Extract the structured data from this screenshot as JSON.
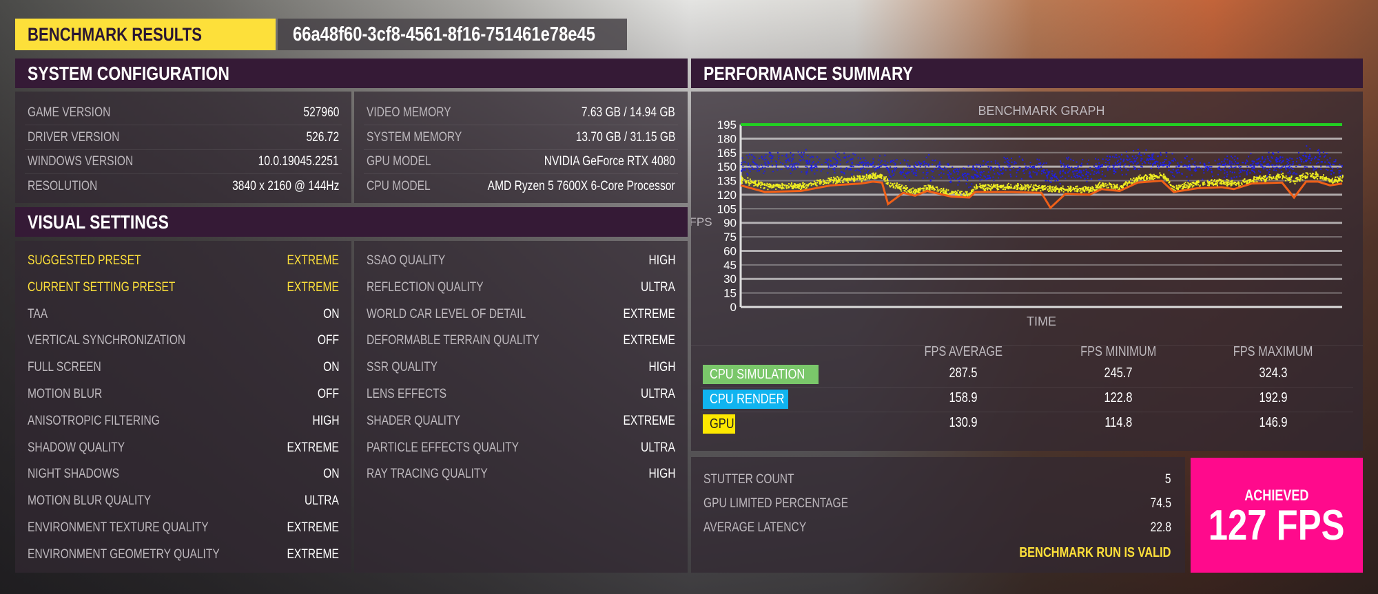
{
  "header": {
    "title": "BENCHMARK RESULTS",
    "run_id": "66a48f60-3cf8-4561-8f16-751461e78e45"
  },
  "system_configuration": {
    "title": "SYSTEM CONFIGURATION",
    "left": [
      {
        "label": "GAME VERSION",
        "value": "527960"
      },
      {
        "label": "DRIVER VERSION",
        "value": "526.72"
      },
      {
        "label": "WINDOWS VERSION",
        "value": "10.0.19045.2251"
      },
      {
        "label": "RESOLUTION",
        "value": "3840 x 2160 @ 144Hz"
      }
    ],
    "right": [
      {
        "label": "VIDEO MEMORY",
        "value": "7.63 GB / 14.94 GB"
      },
      {
        "label": "SYSTEM MEMORY",
        "value": "13.70 GB / 31.15 GB"
      },
      {
        "label": "GPU MODEL",
        "value": "NVIDIA GeForce RTX 4080"
      },
      {
        "label": "CPU MODEL",
        "value": "AMD Ryzen 5 7600X 6-Core Processor"
      }
    ]
  },
  "visual_settings": {
    "title": "VISUAL SETTINGS",
    "left": [
      {
        "label": "SUGGESTED PRESET",
        "value": "EXTREME",
        "highlight": true
      },
      {
        "label": "CURRENT SETTING PRESET",
        "value": "EXTREME",
        "highlight": true
      },
      {
        "label": "TAA",
        "value": "ON"
      },
      {
        "label": "VERTICAL SYNCHRONIZATION",
        "value": "OFF"
      },
      {
        "label": "FULL SCREEN",
        "value": "ON"
      },
      {
        "label": "MOTION BLUR",
        "value": "OFF"
      },
      {
        "label": "ANISOTROPIC FILTERING",
        "value": "HIGH"
      },
      {
        "label": "SHADOW QUALITY",
        "value": "EXTREME"
      },
      {
        "label": "NIGHT SHADOWS",
        "value": "ON"
      },
      {
        "label": "MOTION BLUR QUALITY",
        "value": "ULTRA"
      },
      {
        "label": "ENVIRONMENT TEXTURE QUALITY",
        "value": "EXTREME"
      },
      {
        "label": "ENVIRONMENT GEOMETRY QUALITY",
        "value": "EXTREME"
      }
    ],
    "right": [
      {
        "label": "SSAO QUALITY",
        "value": "HIGH"
      },
      {
        "label": "REFLECTION QUALITY",
        "value": "ULTRA"
      },
      {
        "label": "WORLD CAR LEVEL OF DETAIL",
        "value": "EXTREME"
      },
      {
        "label": "DEFORMABLE TERRAIN QUALITY",
        "value": "EXTREME"
      },
      {
        "label": "SSR QUALITY",
        "value": "HIGH"
      },
      {
        "label": "LENS EFFECTS",
        "value": "ULTRA"
      },
      {
        "label": "SHADER QUALITY",
        "value": "EXTREME"
      },
      {
        "label": "PARTICLE EFFECTS QUALITY",
        "value": "ULTRA"
      },
      {
        "label": "RAY TRACING QUALITY",
        "value": "HIGH"
      }
    ]
  },
  "performance_summary": {
    "title": "PERFORMANCE SUMMARY",
    "columns": [
      "FPS AVERAGE",
      "FPS MINIMUM",
      "FPS MAXIMUM"
    ],
    "rows": [
      {
        "label": "CPU SIMULATION",
        "color": "#7ac76a",
        "text_color": "#ffffff",
        "values": [
          "287.5",
          "245.7",
          "324.3"
        ]
      },
      {
        "label": "CPU RENDER",
        "color": "#10b4f0",
        "text_color": "#ffffff",
        "values": [
          "158.9",
          "122.8",
          "192.9"
        ]
      },
      {
        "label": "GPU",
        "color": "#fde800",
        "text_color": "#222222",
        "values": [
          "130.9",
          "114.8",
          "146.9"
        ]
      }
    ],
    "stats": [
      {
        "label": "STUTTER COUNT",
        "value": "5"
      },
      {
        "label": "GPU LIMITED PERCENTAGE",
        "value": "74.5"
      },
      {
        "label": "AVERAGE LATENCY",
        "value": "22.8"
      }
    ],
    "validity": "BENCHMARK RUN IS VALID",
    "achieved_label": "ACHIEVED",
    "achieved_value": "127 FPS",
    "achieved_color": "#ff0a8c"
  },
  "chart_data": {
    "type": "line",
    "title": "BENCHMARK GRAPH",
    "xlabel": "TIME",
    "ylabel": "FPS",
    "ylim": [
      0,
      195
    ],
    "yticks": [
      0,
      15,
      30,
      45,
      60,
      75,
      90,
      105,
      120,
      135,
      150,
      165,
      180,
      195
    ],
    "grid": true,
    "x": [
      0,
      4,
      10,
      15,
      20,
      22,
      23.5,
      24.5,
      27,
      29,
      31,
      35,
      38,
      39,
      45,
      50,
      51.5,
      54,
      58,
      60,
      63,
      66,
      70,
      72,
      76,
      80,
      82,
      85,
      90,
      92,
      94,
      96,
      98,
      100
    ],
    "series": [
      {
        "color": "#22d022",
        "style": "line",
        "values": [
          195,
          195,
          195,
          195,
          195,
          195,
          195,
          195,
          195,
          195,
          195,
          195,
          195,
          195,
          195,
          195,
          195,
          195,
          195,
          195,
          195,
          195,
          195,
          195,
          195,
          195,
          195,
          195,
          195,
          195,
          195,
          195,
          195,
          195
        ]
      },
      {
        "color": "#2020e0",
        "style": "scatter",
        "values": [
          150,
          155,
          156,
          154,
          152,
          150,
          152,
          148,
          145,
          150,
          150,
          144,
          140,
          146,
          150,
          150,
          140,
          148,
          146,
          150,
          152,
          158,
          156,
          150,
          148,
          150,
          150,
          152,
          154,
          150,
          160,
          158,
          154,
          150
        ]
      },
      {
        "color": "#f0ee20",
        "style": "scatter",
        "values": [
          137,
          130,
          130,
          136,
          138,
          141,
          140,
          133,
          127,
          124,
          129,
          122,
          121,
          129,
          129,
          128,
          126,
          127,
          126,
          131,
          129,
          138,
          141,
          128,
          133,
          134,
          132,
          137,
          140,
          136,
          142,
          141,
          136,
          138
        ]
      },
      {
        "color": "#f06018",
        "style": "line",
        "values": [
          130,
          123,
          124,
          130,
          132,
          134,
          133,
          110,
          122,
          119,
          124,
          118,
          117,
          123,
          123,
          122,
          106,
          121,
          120,
          126,
          124,
          133,
          135,
          123,
          127,
          128,
          126,
          132,
          133,
          117,
          134,
          134,
          130,
          132
        ]
      }
    ]
  }
}
